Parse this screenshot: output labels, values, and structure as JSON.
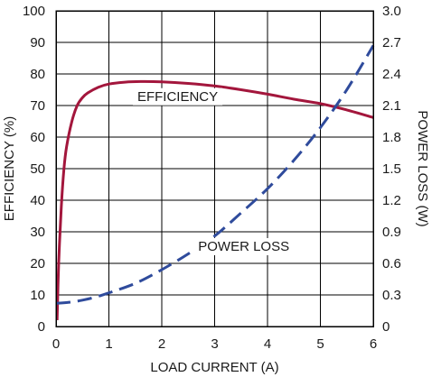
{
  "chart_data": {
    "type": "line",
    "title": "",
    "xlabel": "LOAD CURRENT (A)",
    "ylabel_left": "EFFICIENCY (%)",
    "ylabel_right": "POWER LOSS (W)",
    "xlim": [
      0,
      6
    ],
    "ylim_left": [
      0,
      100
    ],
    "ylim_right": [
      0,
      3.0
    ],
    "x_ticks": [
      "0",
      "1",
      "2",
      "3",
      "4",
      "5",
      "6"
    ],
    "y_left_ticks": [
      "0",
      "10",
      "20",
      "30",
      "40",
      "50",
      "60",
      "70",
      "80",
      "90",
      "100"
    ],
    "y_right_ticks": [
      "0",
      "0.3",
      "0.6",
      "0.9",
      "1.2",
      "1.5",
      "1.8",
      "2.1",
      "2.4",
      "2.7",
      "3.0"
    ],
    "grid": true,
    "series": [
      {
        "name": "EFFICIENCY",
        "axis": "left",
        "style": "solid",
        "color": "#a3163c",
        "x": [
          0.02,
          0.05,
          0.1,
          0.15,
          0.2,
          0.3,
          0.4,
          0.5,
          0.6,
          0.8,
          1.0,
          1.3,
          1.6,
          2.0,
          2.5,
          3.0,
          3.5,
          4.0,
          4.5,
          5.0,
          5.5,
          6.0
        ],
        "y": [
          2,
          20,
          38,
          50,
          57,
          65,
          70,
          72.5,
          74,
          75.8,
          76.8,
          77.4,
          77.6,
          77.5,
          77.0,
          76.2,
          75.0,
          73.6,
          72.0,
          70.6,
          68.6,
          66.2
        ]
      },
      {
        "name": "POWER LOSS",
        "axis": "right",
        "style": "dashed",
        "color": "#2f4b9c",
        "x": [
          0,
          0.25,
          0.5,
          0.75,
          1.0,
          1.5,
          2.0,
          2.5,
          3.0,
          3.5,
          4.0,
          4.5,
          5.0,
          5.5,
          6.0
        ],
        "y": [
          0.22,
          0.23,
          0.25,
          0.28,
          0.32,
          0.41,
          0.54,
          0.69,
          0.86,
          1.08,
          1.31,
          1.58,
          1.89,
          2.25,
          2.67
        ]
      }
    ],
    "annotations": [
      {
        "text": "EFFICIENCY",
        "x": 2.3,
        "y": 71.5,
        "axis": "left"
      },
      {
        "text": "POWER LOSS",
        "x": 3.55,
        "y": 0.72,
        "axis": "right"
      }
    ]
  }
}
